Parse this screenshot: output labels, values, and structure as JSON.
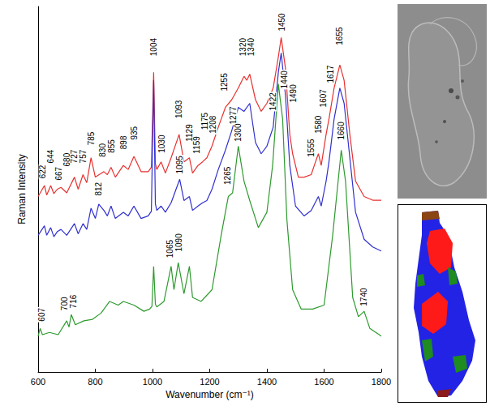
{
  "chart_data": {
    "type": "line",
    "xlabel": "Wavenumber (cm⁻¹)",
    "ylabel": "Raman Intensity",
    "xlim": [
      600,
      1800
    ],
    "xticks": [
      600,
      800,
      1000,
      1200,
      1400,
      1600,
      1800
    ],
    "ylim": [
      0,
      100
    ],
    "tick_labels": "x",
    "grid": false,
    "series": [
      {
        "color": "#e8312f",
        "x": [
          600,
          622,
          630,
          644,
          655,
          667,
          680,
          700,
          727,
          740,
          757,
          770,
          785,
          800,
          830,
          842,
          855,
          870,
          898,
          915,
          935,
          960,
          985,
          996,
          1004,
          1010,
          1015,
          1030,
          1045,
          1065,
          1093,
          1110,
          1129,
          1140,
          1159,
          1175,
          1190,
          1208,
          1230,
          1255,
          1277,
          1300,
          1320,
          1330,
          1340,
          1360,
          1380,
          1400,
          1422,
          1440,
          1450,
          1465,
          1480,
          1490,
          1510,
          1530,
          1555,
          1570,
          1580,
          1590,
          1607,
          1617,
          1635,
          1655,
          1670,
          1690,
          1710,
          1740,
          1770,
          1800
        ],
        "values": [
          48,
          51,
          48.4,
          51,
          48.8,
          50,
          50.5,
          49,
          53.3,
          50,
          54,
          51.8,
          58.6,
          53.3,
          54.8,
          54,
          56,
          53.3,
          56.5,
          55.4,
          59,
          54.8,
          54.8,
          56,
          82,
          57,
          55.4,
          57.5,
          54.4,
          58.6,
          65,
          57.5,
          58.6,
          54.4,
          56.5,
          57.5,
          58.6,
          61.8,
          67,
          72.4,
          74.5,
          77.7,
          80.9,
          79.8,
          81.5,
          74.5,
          71.3,
          73.5,
          77.7,
          86.2,
          91.5,
          83,
          65,
          59.7,
          53.3,
          53.3,
          54,
          57.5,
          59.7,
          56.5,
          65,
          69.2,
          77.7,
          84,
          79.8,
          65,
          52.2,
          48,
          47,
          47
        ]
      },
      {
        "color": "#3030d0",
        "x": [
          600,
          622,
          630,
          644,
          655,
          667,
          680,
          700,
          727,
          740,
          757,
          770,
          785,
          800,
          812,
          830,
          842,
          855,
          870,
          898,
          915,
          935,
          960,
          985,
          996,
          1004,
          1010,
          1015,
          1030,
          1045,
          1065,
          1095,
          1110,
          1129,
          1140,
          1159,
          1175,
          1190,
          1208,
          1230,
          1255,
          1277,
          1300,
          1320,
          1340,
          1360,
          1380,
          1400,
          1422,
          1440,
          1450,
          1465,
          1480,
          1500,
          1530,
          1555,
          1580,
          1590,
          1607,
          1617,
          1635,
          1655,
          1670,
          1690,
          1710,
          1740,
          1770,
          1800
        ],
        "values": [
          37.4,
          40,
          37.4,
          39.5,
          37,
          38.4,
          39,
          37.4,
          40.6,
          37.8,
          40.6,
          39,
          44.8,
          42,
          45.9,
          44.2,
          42.7,
          45.4,
          42,
          43.7,
          42.7,
          45.4,
          42,
          42.7,
          44,
          79.8,
          46,
          44.2,
          45.4,
          43.7,
          46.3,
          52.7,
          46.9,
          48,
          44.2,
          45.4,
          46.3,
          46.9,
          50,
          55.4,
          60.7,
          66,
          72.4,
          71.3,
          73.5,
          62.8,
          59.7,
          61.8,
          67,
          82,
          87.3,
          75.6,
          56.5,
          45.4,
          42.7,
          44.2,
          48,
          45.4,
          52.2,
          57.5,
          69.2,
          77.7,
          73.5,
          58.6,
          43.7,
          36.3,
          34.2,
          33.1
        ]
      },
      {
        "color": "#2e9a2e",
        "x": [
          600,
          607,
          615,
          640,
          670,
          700,
          708,
          716,
          730,
          760,
          790,
          820,
          850,
          880,
          898,
          935,
          970,
          990,
          998,
          1004,
          1010,
          1015,
          1040,
          1065,
          1075,
          1090,
          1110,
          1129,
          1140,
          1170,
          1208,
          1240,
          1265,
          1280,
          1300,
          1320,
          1340,
          1370,
          1400,
          1420,
          1440,
          1455,
          1470,
          1490,
          1520,
          1560,
          1600,
          1630,
          1660,
          1675,
          1700,
          1720,
          1740,
          1760,
          1800
        ],
        "values": [
          9.8,
          11.9,
          10.2,
          10.8,
          10.2,
          14,
          12.3,
          15.7,
          12.9,
          14,
          14.4,
          16.1,
          19.3,
          18.3,
          19.3,
          18.3,
          16.6,
          17.2,
          18,
          28.9,
          18.5,
          17.8,
          19.3,
          28.9,
          22.5,
          29.9,
          21.4,
          28.9,
          20.4,
          19.3,
          22.5,
          37.4,
          48,
          49,
          61.8,
          52.2,
          46.9,
          39.5,
          43.7,
          56.5,
          78.8,
          69.2,
          41.6,
          22.5,
          17.2,
          17.2,
          18.3,
          37.4,
          60.7,
          52.2,
          20.4,
          15.1,
          16.6,
          11.9,
          9.8
        ]
      }
    ],
    "annotations": [
      {
        "text": "622",
        "x": 616,
        "y": 52.7
      },
      {
        "text": "644",
        "x": 644,
        "y": 56.9
      },
      {
        "text": "667",
        "x": 672,
        "y": 52.2
      },
      {
        "text": "680",
        "x": 700,
        "y": 56
      },
      {
        "text": "727",
        "x": 727,
        "y": 56.9
      },
      {
        "text": "757",
        "x": 757,
        "y": 56.9
      },
      {
        "text": "785",
        "x": 785,
        "y": 61.8
      },
      {
        "text": "830",
        "x": 826,
        "y": 58.6
      },
      {
        "text": "855",
        "x": 856,
        "y": 59.7
      },
      {
        "text": "898",
        "x": 898,
        "y": 60.7
      },
      {
        "text": "935",
        "x": 935,
        "y": 63.3
      },
      {
        "text": "1004",
        "x": 1004,
        "y": 86.2
      },
      {
        "text": "1030",
        "x": 1032,
        "y": 59.7
      },
      {
        "text": "1093",
        "x": 1093,
        "y": 69.2
      },
      {
        "text": "1129",
        "x": 1129,
        "y": 62.8
      },
      {
        "text": "1159",
        "x": 1155,
        "y": 59.5
      },
      {
        "text": "1175",
        "x": 1183,
        "y": 66
      },
      {
        "text": "1208",
        "x": 1212,
        "y": 65
      },
      {
        "text": "1255",
        "x": 1252,
        "y": 76.6
      },
      {
        "text": "1277",
        "x": 1282,
        "y": 67.5
      },
      {
        "text": "1320",
        "x": 1316,
        "y": 86.2
      },
      {
        "text": "1340",
        "x": 1346,
        "y": 86.2
      },
      {
        "text": "1422",
        "x": 1420,
        "y": 71.3
      },
      {
        "text": "1450",
        "x": 1452,
        "y": 93
      },
      {
        "text": "1490",
        "x": 1492,
        "y": 73.5
      },
      {
        "text": "1555",
        "x": 1555,
        "y": 58.6
      },
      {
        "text": "1580",
        "x": 1580,
        "y": 65
      },
      {
        "text": "1607",
        "x": 1596,
        "y": 72.2
      },
      {
        "text": "1617",
        "x": 1622,
        "y": 78.8
      },
      {
        "text": "1655",
        "x": 1655,
        "y": 89.2
      },
      {
        "text": "812",
        "x": 812,
        "y": 48
      },
      {
        "text": "1095",
        "x": 1095,
        "y": 54
      },
      {
        "text": "607",
        "x": 612,
        "y": 13.6
      },
      {
        "text": "700",
        "x": 692,
        "y": 16.6
      },
      {
        "text": "716",
        "x": 722,
        "y": 17.2
      },
      {
        "text": "1065",
        "x": 1060,
        "y": 31
      },
      {
        "text": "1090",
        "x": 1093,
        "y": 32.7
      },
      {
        "text": "1265",
        "x": 1262,
        "y": 51
      },
      {
        "text": "1300",
        "x": 1300,
        "y": 62.8
      },
      {
        "text": "1440",
        "x": 1462,
        "y": 77.3
      },
      {
        "text": "1660",
        "x": 1660,
        "y": 63.3
      },
      {
        "text": "1740",
        "x": 1740,
        "y": 17.8
      }
    ]
  }
}
